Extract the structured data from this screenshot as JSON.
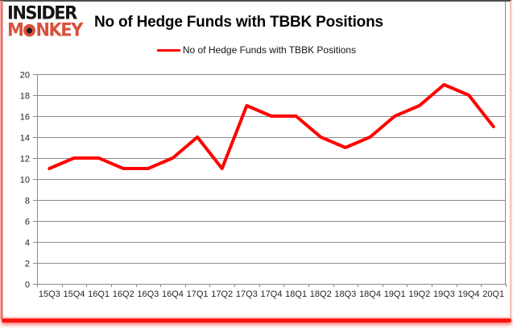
{
  "header": {
    "logo": {
      "line1": "INSIDER",
      "line2": "MONKEY"
    },
    "title": "No of Hedge Funds with TBBK Positions"
  },
  "legend": {
    "label": "No of Hedge Funds with TBBK Positions"
  },
  "colors": {
    "series_line": "#ff0000",
    "logo_red": "#d8503a",
    "logo_black": "#151515",
    "grid": "#8c8c8c",
    "axis_text": "#262626",
    "frame_bottom": "#fb1410",
    "frame_top": "#4e4e50"
  },
  "chart_data": {
    "type": "line",
    "title": "No of Hedge Funds with TBBK Positions",
    "categories": [
      "15Q3",
      "15Q4",
      "16Q1",
      "16Q2",
      "16Q3",
      "16Q4",
      "17Q1",
      "17Q2",
      "17Q3",
      "17Q4",
      "18Q1",
      "18Q2",
      "18Q3",
      "18Q4",
      "19Q1",
      "19Q2",
      "19Q3",
      "19Q4",
      "20Q1"
    ],
    "series": [
      {
        "name": "No of Hedge Funds with TBBK Positions",
        "color": "#ff0000",
        "values": [
          11,
          12,
          12,
          11,
          11,
          12,
          14,
          11,
          17,
          16,
          16,
          14,
          13,
          14,
          16,
          17,
          19,
          18,
          15
        ]
      }
    ],
    "xlabel": "",
    "ylabel": "",
    "ylim": [
      0,
      20
    ],
    "ytick_step": 2,
    "grid": true,
    "legend_position": "top-center"
  }
}
